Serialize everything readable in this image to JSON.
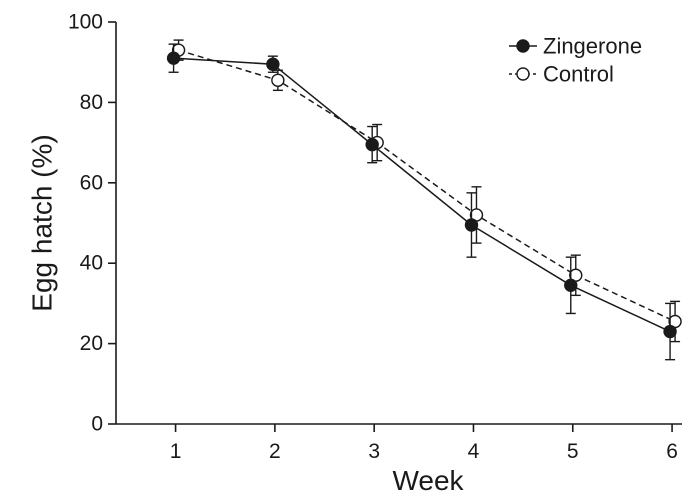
{
  "chart_data": {
    "type": "line",
    "xlabel": "Week",
    "ylabel": "Egg hatch (%)",
    "x": [
      1,
      2,
      3,
      4,
      5,
      6
    ],
    "xticks": [
      "1",
      "2",
      "3",
      "4",
      "5",
      "6"
    ],
    "yticks": [
      "0",
      "20",
      "40",
      "60",
      "80",
      "100"
    ],
    "xlim": [
      0.4,
      6.1
    ],
    "ylim": [
      0,
      100
    ],
    "grid": false,
    "legend_position": "top-right",
    "series": [
      {
        "name": "Zingerone",
        "marker": "filled-circle",
        "line_style": "solid",
        "color": "#1a1a1a",
        "values": [
          91,
          89.5,
          69.5,
          49.5,
          34.5,
          23
        ],
        "errors": [
          3.5,
          2.0,
          4.5,
          8.0,
          7.0,
          7.0
        ]
      },
      {
        "name": "Control",
        "marker": "open-circle",
        "line_style": "dashed",
        "color": "#1a1a1a",
        "values": [
          93,
          85.5,
          70,
          52,
          37,
          25.5
        ],
        "errors": [
          2.5,
          2.5,
          4.5,
          7.0,
          5.0,
          5.0
        ]
      }
    ]
  }
}
